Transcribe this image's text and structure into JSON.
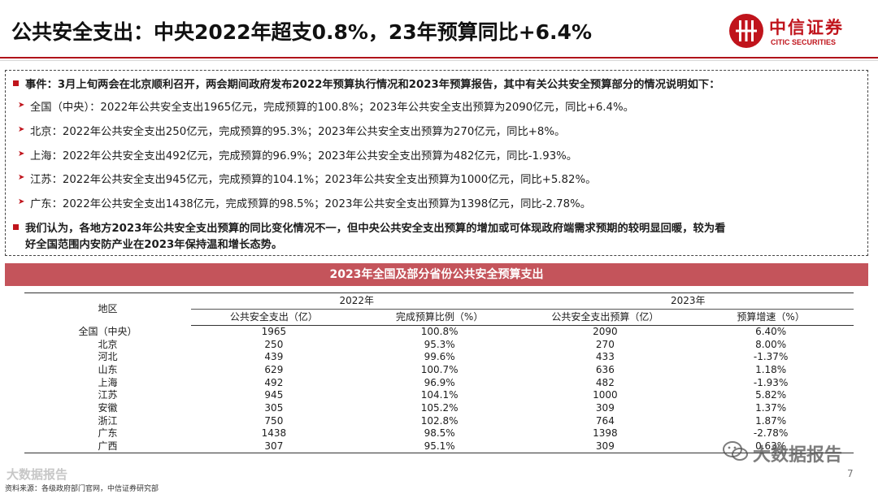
{
  "header": {
    "title": "公共安全支出：中央2022年超支0.8%，23年预算同比+6.4%",
    "logo_cn": "中信证券",
    "logo_en": "CITIC SECURITIES"
  },
  "summary": {
    "event": "事件：3月上旬两会在北京顺利召开，两会期间政府发布2022年预算执行情况和2023年预算报告，其中有关公共安全预算部分的情况说明如下：",
    "points": [
      "全国（中央）：2022年公共安全支出1965亿元，完成预算的100.8%；2023年公共安全支出预算为2090亿元，同比+6.4%。",
      "北京：2022年公共安全支出250亿元，完成预算的95.3%；2023年公共安全支出预算为270亿元，同比+8%。",
      "上海：2022年公共安全支出492亿元，完成预算的96.9%；2023年公共安全支出预算为482亿元，同比-1.93%。",
      "江苏：2022年公共安全支出945亿元，完成预算的104.1%；2023年公共安全支出预算为1000亿元，同比+5.82%。",
      "广东：2022年公共安全支出1438亿元，完成预算的98.5%；2023年公共安全支出预算为1398亿元，同比-2.78%。"
    ],
    "opinion_line1": "我们认为，各地方2023年公共安全支出预算的同比变化情况不一，但中央公共安全支出预算的增加或可体现政府端需求预期的较明显回暖，较为看",
    "opinion_line2": "好全国范围内安防产业在2023年保持温和增长态势。"
  },
  "table": {
    "title": "2023年全国及部分省份公共安全预算支出",
    "region_header": "地区",
    "year_2022": "2022年",
    "year_2023": "2023年",
    "headers": [
      "公共安全支出（亿）",
      "完成预算比例（%）",
      "公共安全支出预算（亿）",
      "预算增速（%）"
    ],
    "rows": [
      [
        "全国（中央）",
        "1965",
        "100.8%",
        "2090",
        "6.40%"
      ],
      [
        "北京",
        "250",
        "95.3%",
        "270",
        "8.00%"
      ],
      [
        "河北",
        "439",
        "99.6%",
        "433",
        "-1.37%"
      ],
      [
        "山东",
        "629",
        "100.7%",
        "636",
        "1.18%"
      ],
      [
        "上海",
        "492",
        "96.9%",
        "482",
        "-1.93%"
      ],
      [
        "江苏",
        "945",
        "104.1%",
        "1000",
        "5.82%"
      ],
      [
        "安徽",
        "305",
        "105.2%",
        "309",
        "1.37%"
      ],
      [
        "浙江",
        "750",
        "102.8%",
        "764",
        "1.87%"
      ],
      [
        "广东",
        "1438",
        "98.5%",
        "1398",
        "-2.78%"
      ],
      [
        "广西",
        "307",
        "95.1%",
        "309",
        "0.63%"
      ]
    ]
  },
  "footer": {
    "source": "资料来源：各级政府部门官网，中信证券研究部",
    "page": "7"
  },
  "watermarks": {
    "left": "大数据报告",
    "right": "大数据报告"
  },
  "colors": {
    "brand_red": "#c0141c",
    "table_header": "#c4545b"
  }
}
